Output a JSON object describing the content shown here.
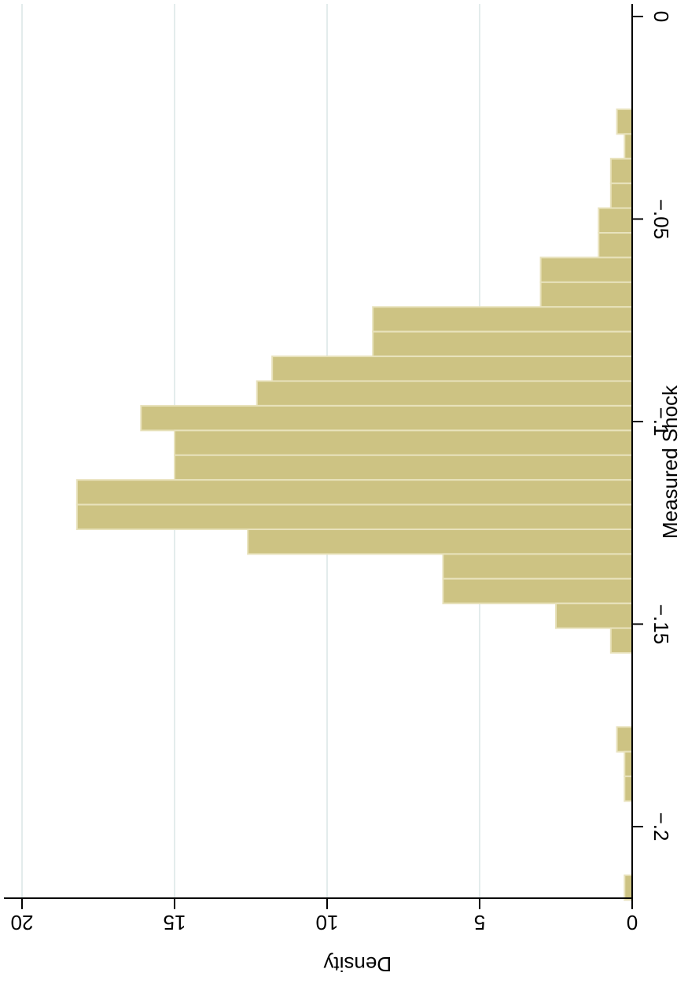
{
  "chart_data": {
    "type": "bar",
    "orientation": "horizontal-rotated",
    "title": "",
    "xlabel": "Measured Shock",
    "ylabel": "Density",
    "x_ticks": [
      0,
      -0.05,
      -0.1,
      -0.15,
      -0.2
    ],
    "x_tick_labels": [
      "0",
      "−.05",
      "−.1",
      "−.15",
      "−.2"
    ],
    "y_ticks": [
      0,
      5,
      10,
      15,
      20
    ],
    "y_tick_labels": [
      "0",
      "5",
      "10",
      "15",
      "20"
    ],
    "x_range": [
      0.003,
      -0.228
    ],
    "y_range": [
      0,
      20.4
    ],
    "bin_width": 0.0061,
    "bins": [
      {
        "start": -0.029,
        "end": -0.0229,
        "density": 0.5
      },
      {
        "start": -0.0351,
        "end": -0.029,
        "density": 0.25
      },
      {
        "start": -0.0412,
        "end": -0.0351,
        "density": 0.7
      },
      {
        "start": -0.0473,
        "end": -0.0412,
        "density": 0.7
      },
      {
        "start": -0.0534,
        "end": -0.0473,
        "density": 1.1
      },
      {
        "start": -0.0595,
        "end": -0.0534,
        "density": 1.1
      },
      {
        "start": -0.0656,
        "end": -0.0595,
        "density": 3.0
      },
      {
        "start": -0.0717,
        "end": -0.0656,
        "density": 3.0
      },
      {
        "start": -0.0778,
        "end": -0.0717,
        "density": 8.5
      },
      {
        "start": -0.0839,
        "end": -0.0778,
        "density": 8.5
      },
      {
        "start": -0.09,
        "end": -0.0839,
        "density": 11.8
      },
      {
        "start": -0.0961,
        "end": -0.09,
        "density": 12.3
      },
      {
        "start": -0.1022,
        "end": -0.0961,
        "density": 16.1
      },
      {
        "start": -0.1083,
        "end": -0.1022,
        "density": 15.0
      },
      {
        "start": -0.1144,
        "end": -0.1083,
        "density": 15.0
      },
      {
        "start": -0.1205,
        "end": -0.1144,
        "density": 18.2
      },
      {
        "start": -0.1266,
        "end": -0.1205,
        "density": 18.2
      },
      {
        "start": -0.1327,
        "end": -0.1266,
        "density": 12.6
      },
      {
        "start": -0.1388,
        "end": -0.1327,
        "density": 6.2
      },
      {
        "start": -0.1449,
        "end": -0.1388,
        "density": 6.2
      },
      {
        "start": -0.151,
        "end": -0.1449,
        "density": 2.5
      },
      {
        "start": -0.1571,
        "end": -0.151,
        "density": 0.7
      },
      {
        "start": -0.1815,
        "end": -0.1754,
        "density": 0.5
      },
      {
        "start": -0.1876,
        "end": -0.1815,
        "density": 0.25
      },
      {
        "start": -0.1937,
        "end": -0.1876,
        "density": 0.25
      },
      {
        "start": -0.2181,
        "end": -0.212,
        "density": 0.25
      }
    ],
    "grid": true,
    "colors": {
      "bar_fill": "#cdc383",
      "bar_stroke": "#e8e2bc",
      "grid": "#e3ecec",
      "axis": "#000000"
    }
  }
}
